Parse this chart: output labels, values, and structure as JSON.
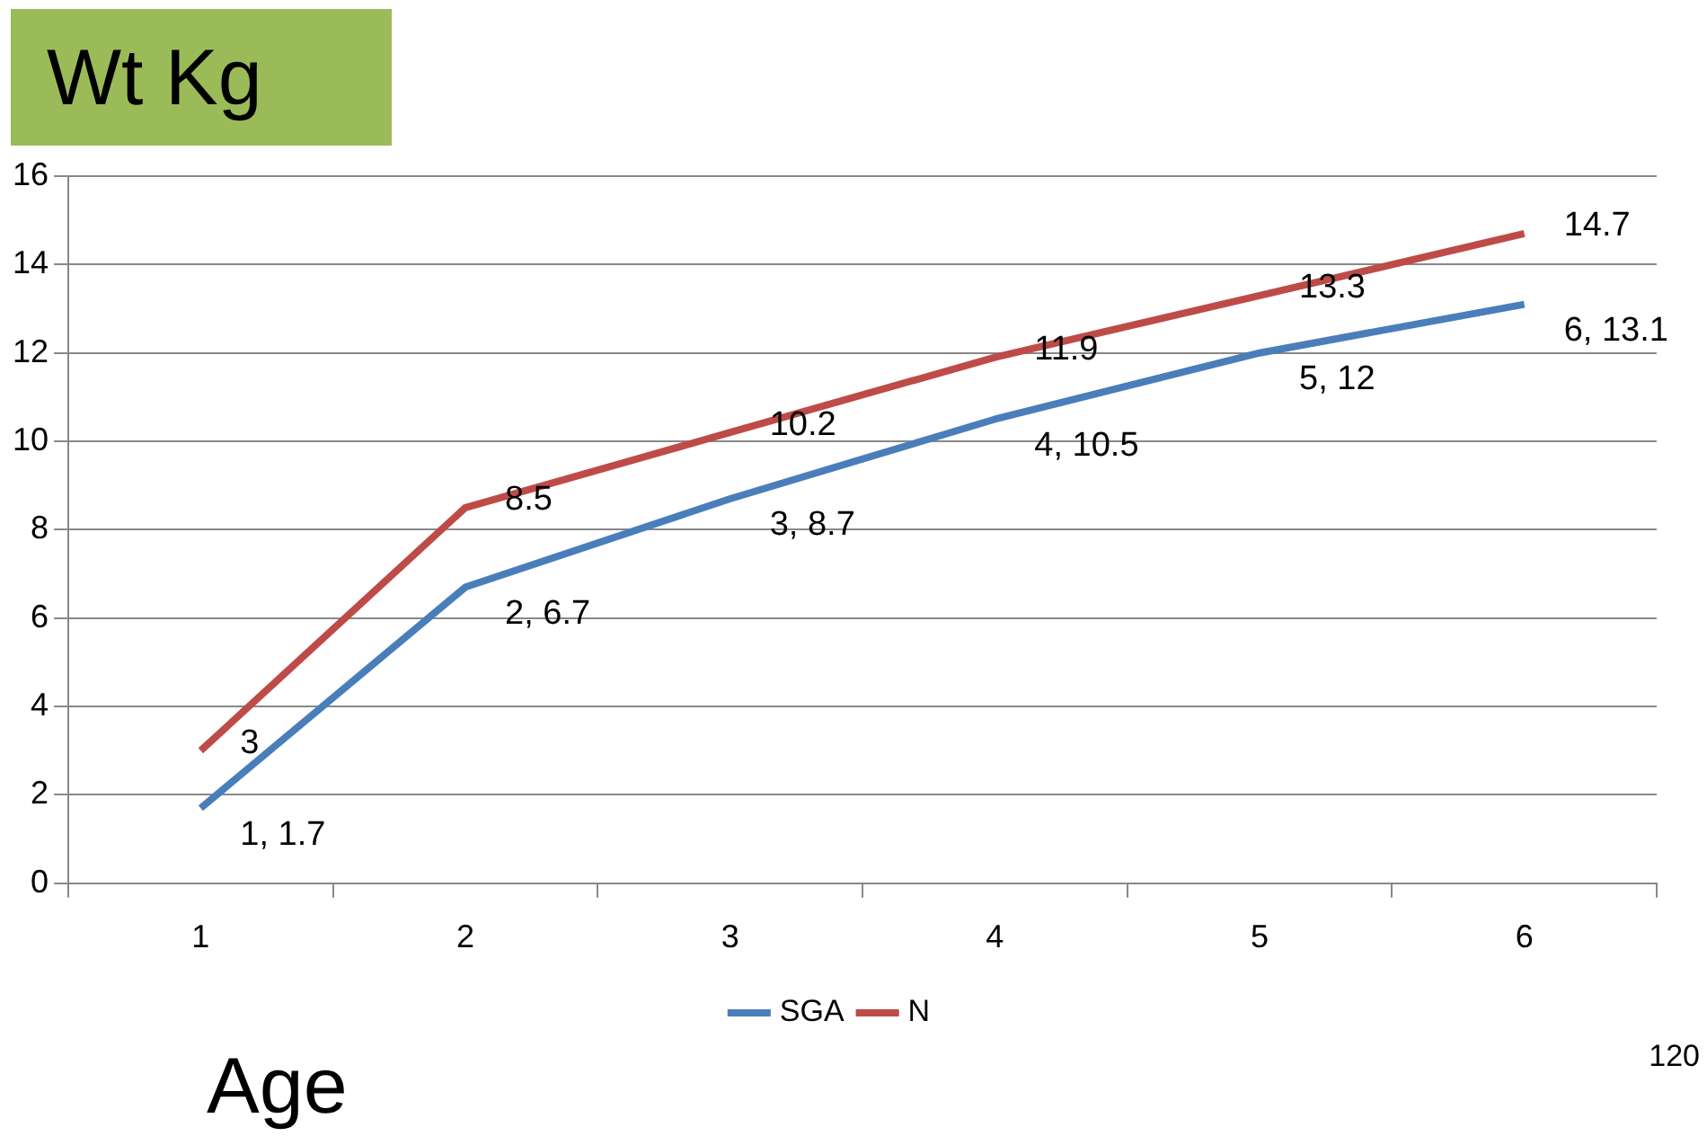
{
  "chart_data": {
    "type": "line",
    "ylabel": "Wt Kg",
    "xlabel": "Age",
    "categories": [
      "1",
      "2",
      "3",
      "4",
      "5",
      "6"
    ],
    "series": [
      {
        "name": "SGA",
        "color": "#4a7ebb",
        "values": [
          1.7,
          6.7,
          8.7,
          10.5,
          12,
          13.1
        ],
        "value_labels": [
          "1, 1.7",
          "2, 6.7",
          "3, 8.7",
          "4, 10.5",
          "5, 12",
          "6, 13.1"
        ]
      },
      {
        "name": "N",
        "color": "#be4b48",
        "values": [
          3,
          8.5,
          10.2,
          11.9,
          13.3,
          14.7
        ],
        "value_labels": [
          "3",
          "8.5",
          "10.2",
          "11.9",
          "13.3",
          "14.7"
        ]
      }
    ],
    "ylim": [
      0,
      16
    ],
    "yticks": [
      0,
      2,
      4,
      6,
      8,
      10,
      12,
      14,
      16
    ],
    "grid": "y",
    "legend": "bottom",
    "marker": "none",
    "line_style": "solid",
    "annotations": [
      "120"
    ]
  }
}
